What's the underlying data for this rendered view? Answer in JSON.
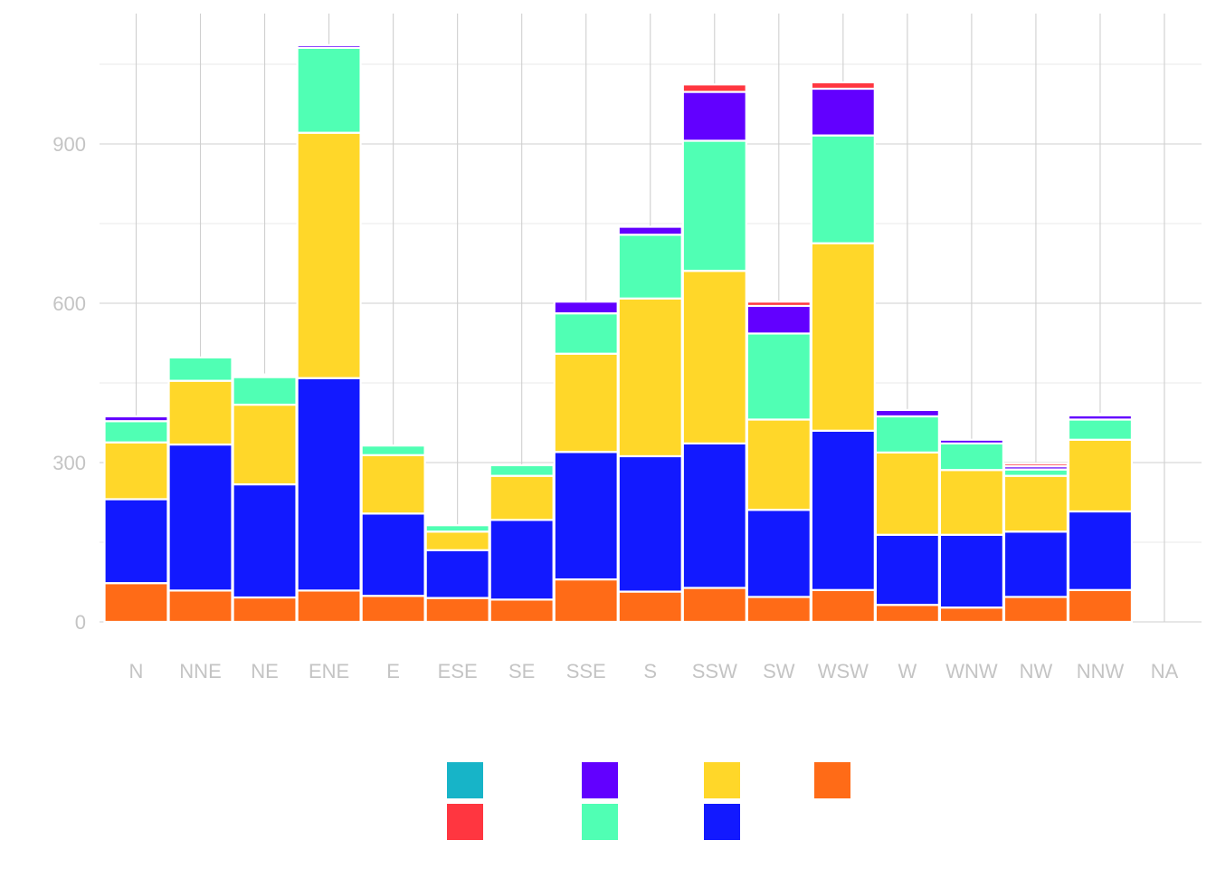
{
  "chart_data": {
    "type": "bar",
    "stacked": true,
    "title": "",
    "xlabel": "",
    "ylabel": "",
    "categories": [
      "N",
      "NNE",
      "NE",
      "ENE",
      "E",
      "ESE",
      "SE",
      "SSE",
      "S",
      "SSW",
      "SW",
      "WSW",
      "W",
      "WNW",
      "NW",
      "NNW",
      "NA"
    ],
    "ylim": [
      0,
      1145
    ],
    "yticks": [
      0,
      300,
      600,
      900
    ],
    "grid": true,
    "legend_position": "bottom",
    "series": [
      {
        "color": "#17b4c8",
        "values": [
          0,
          0,
          0,
          0,
          0,
          0,
          0,
          0,
          0,
          0,
          0,
          0,
          0,
          0,
          0,
          0,
          0
        ]
      },
      {
        "color": "#ff3640",
        "values": [
          0,
          0,
          3,
          0,
          0,
          0,
          0,
          0,
          0,
          14,
          8,
          12,
          0,
          0,
          5,
          3,
          0
        ]
      },
      {
        "color": "#6200ff",
        "values": [
          9,
          0,
          2,
          5,
          0,
          0,
          0,
          22,
          15,
          92,
          52,
          88,
          12,
          7,
          6,
          8,
          0
        ]
      },
      {
        "color": "#50ffb4",
        "values": [
          40,
          44,
          52,
          160,
          18,
          12,
          20,
          76,
          120,
          245,
          162,
          203,
          68,
          50,
          12,
          38,
          0
        ]
      },
      {
        "color": "#ffd729",
        "values": [
          107,
          120,
          150,
          462,
          110,
          35,
          83,
          185,
          297,
          325,
          170,
          353,
          155,
          122,
          105,
          135,
          0
        ]
      },
      {
        "color": "#1219ff",
        "values": [
          158,
          275,
          213,
          400,
          155,
          90,
          150,
          240,
          255,
          272,
          164,
          300,
          132,
          137,
          123,
          148,
          0
        ]
      },
      {
        "color": "#ff6b17",
        "values": [
          73,
          59,
          46,
          59,
          49,
          45,
          42,
          80,
          57,
          64,
          47,
          60,
          32,
          27,
          47,
          60,
          0
        ]
      }
    ]
  }
}
